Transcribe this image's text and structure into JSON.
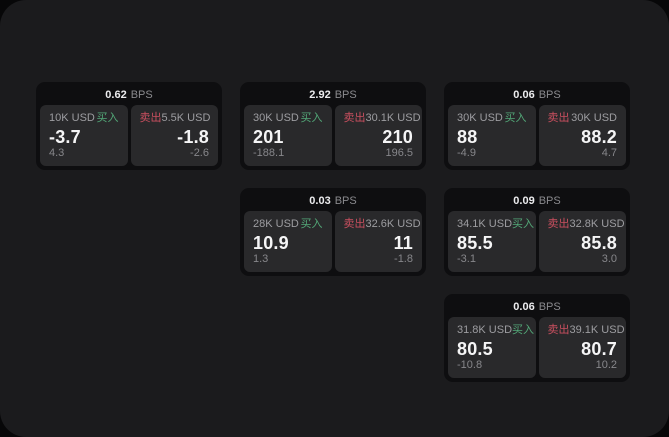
{
  "labels": {
    "buy": "买入",
    "sell": "卖出",
    "bps_unit": "BPS"
  },
  "colors": {
    "buy_green": "#53a878",
    "sell_red": "#c94f5f",
    "window_bg": "#1b1b1d",
    "card_bg": "#0e0e10",
    "panel_bg": "#29292b"
  },
  "cards": [
    {
      "bps": "0.62",
      "buy": {
        "size": "10K USD",
        "price": "-3.7",
        "delta": "4.3"
      },
      "sell": {
        "size": "5.5K USD",
        "price": "-1.8",
        "delta": "-2.6"
      }
    },
    {
      "bps": "2.92",
      "buy": {
        "size": "30K USD",
        "price": "201",
        "delta": "-188.1"
      },
      "sell": {
        "size": "30.1K USD",
        "price": "210",
        "delta": "196.5"
      }
    },
    {
      "bps": "0.06",
      "buy": {
        "size": "30K USD",
        "price": "88",
        "delta": "-4.9"
      },
      "sell": {
        "size": "30K USD",
        "price": "88.2",
        "delta": "4.7"
      }
    },
    {
      "bps": "0.03",
      "buy": {
        "size": "28K USD",
        "price": "10.9",
        "delta": "1.3"
      },
      "sell": {
        "size": "32.6K USD",
        "price": "11",
        "delta": "-1.8"
      }
    },
    {
      "bps": "0.09",
      "buy": {
        "size": "34.1K USD",
        "price": "85.5",
        "delta": "-3.1"
      },
      "sell": {
        "size": "32.8K USD",
        "price": "85.8",
        "delta": "3.0"
      }
    },
    {
      "bps": "0.06",
      "buy": {
        "size": "31.8K USD",
        "price": "80.5",
        "delta": "-10.8"
      },
      "sell": {
        "size": "39.1K USD",
        "price": "80.7",
        "delta": "10.2"
      }
    }
  ]
}
